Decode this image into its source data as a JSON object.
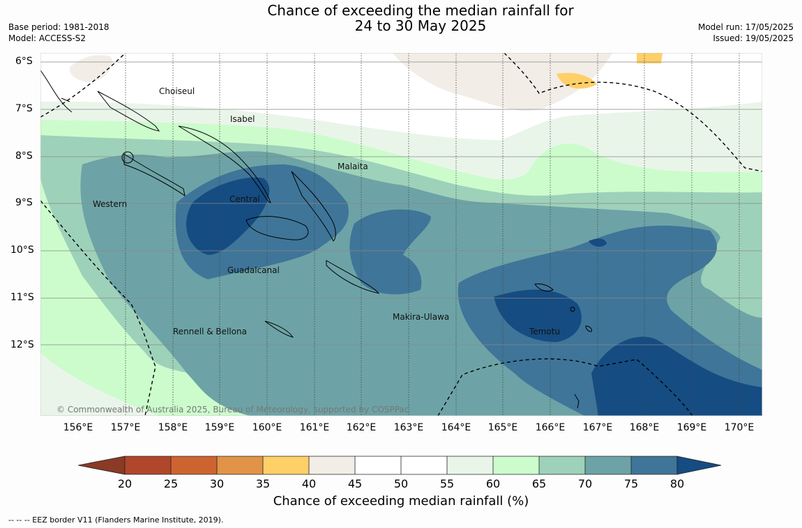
{
  "header": {
    "title_line1": "Chance of exceeding the median rainfall for",
    "title_line2": "24 to 30 May 2025",
    "base_period": "Base period: 1981-2018",
    "model": "Model: ACCESS-S2",
    "model_run": "Model run: 17/05/2025",
    "issued": "Issued: 19/05/2025"
  },
  "axes": {
    "lat_ticks": [
      "6°S",
      "7°S",
      "8°S",
      "9°S",
      "10°S",
      "11°S",
      "12°S"
    ],
    "lon_ticks": [
      "156°E",
      "157°E",
      "158°E",
      "159°E",
      "160°E",
      "161°E",
      "162°E",
      "163°E",
      "164°E",
      "165°E",
      "166°E",
      "167°E",
      "168°E",
      "169°E",
      "170°E"
    ]
  },
  "map": {
    "places": [
      "Choiseul",
      "Isabel",
      "Malaita",
      "Western",
      "Central",
      "Guadalcanal",
      "Makira-Ulawa",
      "Rennell & Bellona",
      "Temotu"
    ],
    "copyright": "© Commonwealth of Australia 2025, Bureau of Meteorology, supported by COSPPac"
  },
  "colorbar": {
    "labels": [
      "20",
      "25",
      "30",
      "35",
      "40",
      "45",
      "50",
      "55",
      "60",
      "65",
      "70",
      "75",
      "80"
    ],
    "colors": [
      "#8a3a25",
      "#b0472a",
      "#cd6430",
      "#e19347",
      "#ffcf68",
      "#f2ede6",
      "#ffffff",
      "#ffffff",
      "#eaf5ea",
      "#ccfccc",
      "#9ed1b9",
      "#6da3a6",
      "#3f7598",
      "#154c82"
    ],
    "title": "Chance of exceeding median rainfall (%)"
  },
  "footnote": "--  --  -- EEZ border V11 (Flanders Marine Institute, 2019)."
}
